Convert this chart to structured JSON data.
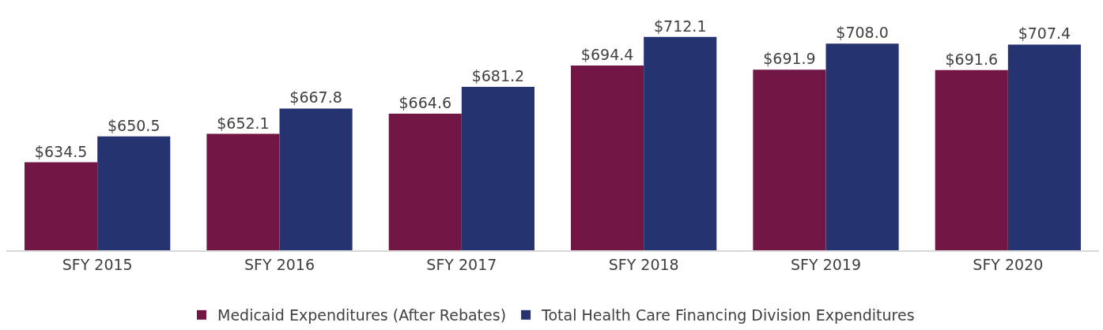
{
  "chart_data": {
    "type": "bar",
    "categories": [
      "SFY 2015",
      "SFY 2016",
      "SFY 2017",
      "SFY 2018",
      "SFY 2019",
      "SFY 2020"
    ],
    "series": [
      {
        "name": "Medicaid Expenditures (After Rebates)",
        "color": "#711645",
        "values": [
          634.5,
          652.1,
          664.6,
          694.4,
          691.9,
          691.6
        ],
        "value_labels": [
          "$634.5",
          "$652.1",
          "$664.6",
          "$694.4",
          "$691.9",
          "$691.6"
        ]
      },
      {
        "name": "Total Health Care Financing Division Expenditures",
        "color": "#253370",
        "values": [
          650.5,
          667.8,
          681.2,
          712.1,
          708.0,
          707.4
        ],
        "value_labels": [
          "$650.5",
          "$667.8",
          "$681.2",
          "$712.1",
          "$708.0",
          "$707.4"
        ]
      }
    ],
    "ylim": [
      580,
      735
    ],
    "tick_labels": "x",
    "legend": "bottom"
  }
}
